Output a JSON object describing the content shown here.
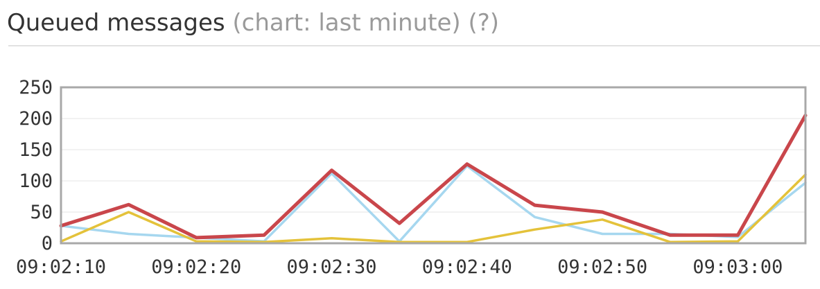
{
  "header": {
    "title": "Queued messages",
    "subtitle": "(chart: last minute)",
    "help": "(?)"
  },
  "chart_data": {
    "type": "line",
    "title": "Queued messages",
    "subtitle": "(chart: last minute)",
    "xlabel": "",
    "ylabel": "",
    "ylim": [
      0,
      250
    ],
    "y_ticks": [
      0,
      50,
      100,
      150,
      200,
      250
    ],
    "x_tick_labels": [
      "09:02:10",
      "09:02:20",
      "09:02:30",
      "09:02:40",
      "09:02:50",
      "09:03:00"
    ],
    "x_tick_index": [
      0,
      2,
      4,
      6,
      8,
      10
    ],
    "x_points": [
      "09:02:10",
      "09:02:15",
      "09:02:20",
      "09:02:25",
      "09:02:30",
      "09:02:35",
      "09:02:40",
      "09:02:45",
      "09:02:50",
      "09:02:55",
      "09:03:00",
      "09:03:05"
    ],
    "grid": true,
    "legend": "none",
    "series": [
      {
        "color": "#c9464b",
        "values": [
          28,
          62,
          9,
          13,
          117,
          32,
          127,
          61,
          50,
          13,
          13,
          205
        ]
      },
      {
        "color": "#a6d7ef",
        "values": [
          28,
          15,
          9,
          3,
          112,
          3,
          124,
          42,
          15,
          15,
          10,
          97
        ]
      },
      {
        "color": "#e4c23a",
        "values": [
          3,
          50,
          3,
          2,
          8,
          2,
          2,
          22,
          38,
          2,
          3,
          110
        ]
      }
    ]
  }
}
